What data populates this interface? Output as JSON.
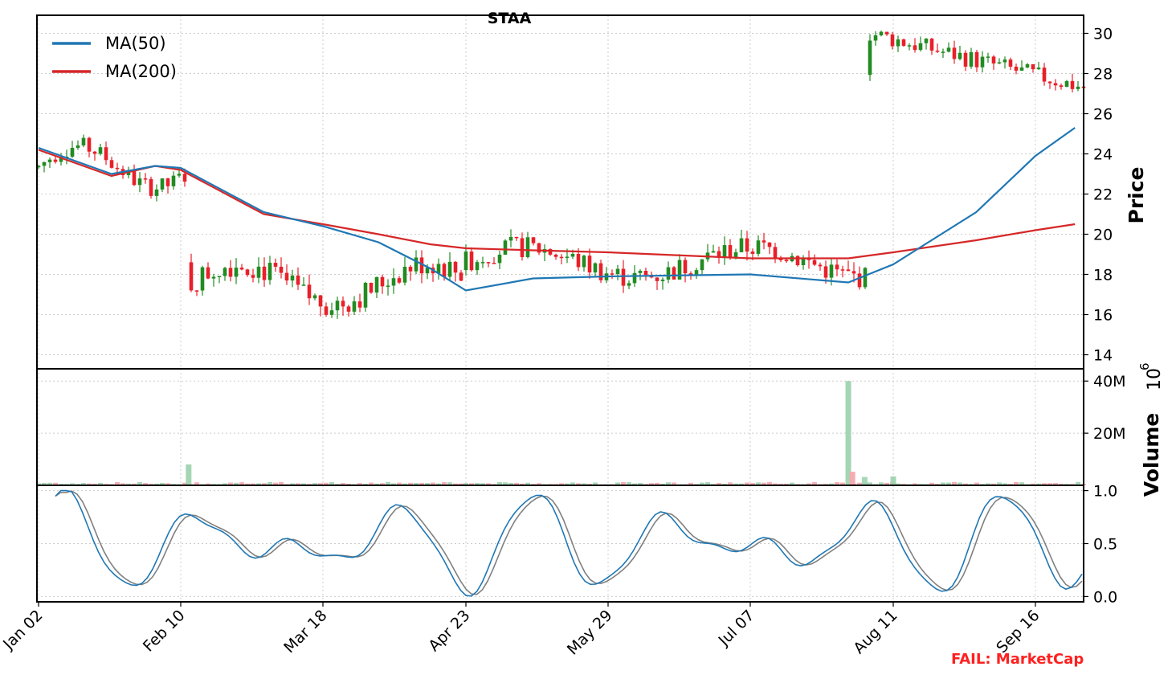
{
  "chart_data": {
    "type": "candlestick",
    "title": "STAA",
    "ticker": "STAA",
    "xlabels": [
      "Jan 02",
      "Feb 10",
      "Mar 18",
      "Apr 23",
      "May 29",
      "Jul 07",
      "Aug 11",
      "Sep 16"
    ],
    "price_panel": {
      "ylabel": "Price",
      "ylim": [
        13.3,
        30.9
      ],
      "yticks": [
        14,
        16,
        18,
        20,
        22,
        24,
        26,
        28,
        30
      ],
      "grid": true,
      "legend_position": "top-left",
      "legend": [
        "MA(50)",
        "MA(200)"
      ],
      "colors": {
        "up": "#228b22",
        "down": "#e8202a",
        "ma50": "#1f77b4",
        "ma200": "#d62728"
      },
      "candles_ohlc_by_phase": [
        {
          "segment": "Jan 02 – Feb 07",
          "range": [
            21.3,
            25.4
          ]
        },
        {
          "segment": "Feb 10 – Apr 22",
          "range": [
            14.7,
            20.4
          ]
        },
        {
          "segment": "Apr 23 – Jul 31",
          "range": [
            16.1,
            21.1
          ]
        },
        {
          "segment": "Aug 01 – Sep 22",
          "range": [
            26.6,
            30.8
          ]
        }
      ],
      "ma50": [
        {
          "x": "Jan 02",
          "y": 24.3
        },
        {
          "x": "Jan 22",
          "y": 23.0
        },
        {
          "x": "Feb 03",
          "y": 23.4
        },
        {
          "x": "Feb 10",
          "y": 23.3
        },
        {
          "x": "Mar 03",
          "y": 21.1
        },
        {
          "x": "Mar 18",
          "y": 20.4
        },
        {
          "x": "Apr 01",
          "y": 19.6
        },
        {
          "x": "Apr 14",
          "y": 18.3
        },
        {
          "x": "Apr 23",
          "y": 17.2
        },
        {
          "x": "May 10",
          "y": 17.8
        },
        {
          "x": "May 29",
          "y": 17.9
        },
        {
          "x": "Jul 07",
          "y": 18.0
        },
        {
          "x": "Jul 31",
          "y": 17.6
        },
        {
          "x": "Aug 11",
          "y": 18.5
        },
        {
          "x": "Sep 01",
          "y": 21.1
        },
        {
          "x": "Sep 16",
          "y": 23.9
        },
        {
          "x": "Sep 26",
          "y": 25.3
        }
      ],
      "ma200": [
        {
          "x": "Jan 02",
          "y": 24.2
        },
        {
          "x": "Jan 22",
          "y": 22.9
        },
        {
          "x": "Feb 03",
          "y": 23.4
        },
        {
          "x": "Feb 10",
          "y": 23.2
        },
        {
          "x": "Mar 03",
          "y": 21.0
        },
        {
          "x": "Mar 18",
          "y": 20.5
        },
        {
          "x": "Apr 01",
          "y": 20.0
        },
        {
          "x": "Apr 14",
          "y": 19.5
        },
        {
          "x": "Apr 23",
          "y": 19.3
        },
        {
          "x": "May 10",
          "y": 19.2
        },
        {
          "x": "May 29",
          "y": 19.1
        },
        {
          "x": "Jul 07",
          "y": 18.8
        },
        {
          "x": "Jul 31",
          "y": 18.8
        },
        {
          "x": "Aug 11",
          "y": 19.1
        },
        {
          "x": "Sep 01",
          "y": 19.7
        },
        {
          "x": "Sep 16",
          "y": 20.2
        },
        {
          "x": "Sep 26",
          "y": 20.5
        }
      ]
    },
    "volume_panel": {
      "ylabel": "Volume",
      "exponent_label": "10",
      "exponent_power": "6",
      "yticks": [
        "20M",
        "40M"
      ],
      "ylim": [
        0,
        41
      ],
      "notable_bars": [
        {
          "x": "Feb 12",
          "value_millions": 8.0
        },
        {
          "x": "Jul 31",
          "value_millions": 40.0
        },
        {
          "x": "Aug 01",
          "value_millions": 5.2
        },
        {
          "x": "Aug 04",
          "value_millions": 3.2
        },
        {
          "x": "Aug 11",
          "value_millions": 3.4
        }
      ]
    },
    "oscillator_panel": {
      "ylim": [
        -0.05,
        1.05
      ],
      "yticks": [
        "0.0",
        "0.5",
        "1.0"
      ],
      "colors": {
        "k": "#1f77b4",
        "d": "#808080"
      }
    },
    "annotation": {
      "text": "FAIL: MarketCap",
      "color": "#ff2020"
    }
  }
}
